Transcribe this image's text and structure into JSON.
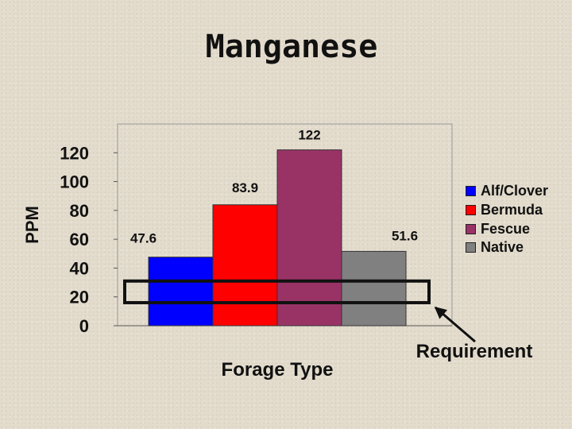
{
  "title": "Manganese",
  "chart_data": {
    "type": "bar",
    "title": "Manganese",
    "xlabel": "Forage Type",
    "ylabel": "PPM",
    "ylim": [
      0,
      140
    ],
    "yticks": [
      0,
      20,
      40,
      60,
      80,
      100,
      120
    ],
    "categories": [
      "Alf/Clover",
      "Bermuda",
      "Fescue",
      "Native"
    ],
    "values": [
      47.6,
      83.9,
      122,
      51.6
    ],
    "data_labels": [
      "47.6",
      "83.9",
      "122",
      "51.6"
    ],
    "colors": [
      "#0000ff",
      "#ff0000",
      "#993366",
      "#808080"
    ],
    "legend_position": "right",
    "grid": false,
    "requirement_band": [
      16,
      31
    ],
    "annotation": "Requirement"
  },
  "legend": [
    {
      "label": "Alf/Clover",
      "color": "#0000ff"
    },
    {
      "label": "Bermuda",
      "color": "#ff0000"
    },
    {
      "label": "Fescue",
      "color": "#993366"
    },
    {
      "label": "Native",
      "color": "#808080"
    }
  ]
}
